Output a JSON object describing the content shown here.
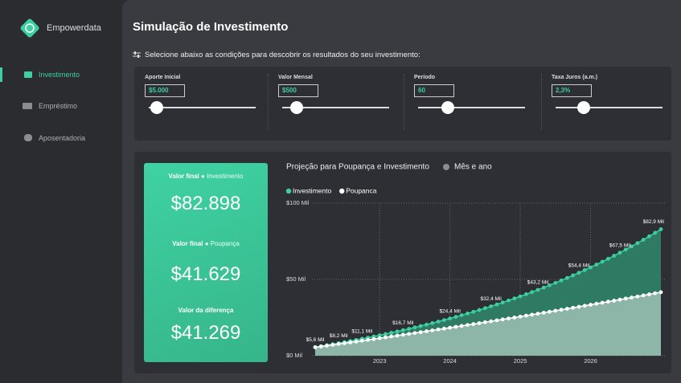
{
  "sidebar": {
    "brand": "Empowerdata",
    "nav": [
      "Investimento",
      "Empréstimo",
      "Aposentadoria"
    ]
  },
  "header": {
    "title": "Simulação de Investimento",
    "subtitle": "Selecione abaixo as condições para descobrir os resultados do seu investimento:"
  },
  "controls": [
    {
      "label": "Aporte Inicial",
      "value": "$5.000"
    },
    {
      "label": "Valor Mensal",
      "value": "$500"
    },
    {
      "label": "Período",
      "value": "60"
    },
    {
      "label": "Taxa Juros (a.m.)",
      "value": "2,3%"
    }
  ],
  "kpis": [
    {
      "label": "Valor final",
      "legend": "Investimento",
      "value": "$82.898"
    },
    {
      "label": "Valor final",
      "legend": "Poupança",
      "value": "$41.629"
    },
    {
      "label": "Valor da diferença",
      "value": "$41.269"
    }
  ],
  "chart_data": {
    "type": "area",
    "title": "Projeção para Poupança e Investimento",
    "subtitle": "Mês e ano",
    "categories": [
      null,
      null,
      null,
      null,
      null,
      null,
      null,
      null,
      null,
      null,
      null,
      "2023",
      null,
      null,
      null,
      null,
      null,
      null,
      null,
      null,
      null,
      null,
      null,
      "2024",
      null,
      null,
      null,
      null,
      null,
      null,
      null,
      null,
      null,
      null,
      null,
      "2025",
      null,
      null,
      null,
      null,
      null,
      null,
      null,
      null,
      null,
      null,
      null,
      "2026",
      null,
      null,
      null,
      null,
      null,
      null,
      null,
      null,
      null,
      null,
      null,
      null
    ],
    "ylim": [
      0,
      100000
    ],
    "yticks": [
      {
        "value": 0,
        "label": "$0 Mil"
      },
      {
        "value": 50000,
        "label": "$50 Mil"
      },
      {
        "value": 100000,
        "label": "$100 Mil"
      }
    ],
    "grid": true,
    "series": [
      {
        "name": "Investimento",
        "color": "#3dcf9f",
        "fill": "#2e7a62",
        "values": [
          5615,
          6244,
          6888,
          7546,
          8220,
          8909,
          9614,
          10335,
          11073,
          11828,
          12600,
          13390,
          14198,
          15025,
          15871,
          16736,
          17621,
          18526,
          19452,
          20399,
          21368,
          22359,
          23373,
          24411,
          25472,
          26558,
          27669,
          28805,
          29968,
          31157,
          32374,
          33619,
          34892,
          36195,
          37527,
          38890,
          40284,
          41711,
          43170,
          44663,
          46190,
          47752,
          49350,
          50985,
          52658,
          54369,
          56120,
          57911,
          59743,
          61617,
          63534,
          65495,
          67501,
          69554,
          71654,
          73802,
          75999,
          78247,
          80547,
          82898
        ],
        "value_labels": [
          "$5,6 Mil",
          null,
          null,
          null,
          "$8,2 Mil",
          null,
          null,
          null,
          "$11,1 Mil",
          null,
          null,
          null,
          null,
          null,
          null,
          "$16,7 Mil",
          null,
          null,
          null,
          null,
          null,
          null,
          null,
          "$24,4 Mil",
          null,
          null,
          null,
          null,
          null,
          null,
          "$32,4 Mil",
          null,
          null,
          null,
          null,
          null,
          null,
          null,
          "$43,2 Mil",
          null,
          null,
          null,
          null,
          null,
          null,
          "$54,4 Mil",
          null,
          null,
          null,
          null,
          null,
          null,
          "$67,5 Mil",
          null,
          null,
          null,
          null,
          null,
          null,
          "$82,9 Mil"
        ]
      },
      {
        "name": "Poupanca",
        "color": "#ffffff",
        "fill": "#8db5a8",
        "values": [
          5525,
          6053,
          6583,
          7116,
          7652,
          8190,
          8731,
          9275,
          9821,
          10370,
          10922,
          11477,
          12034,
          12594,
          13157,
          13723,
          14292,
          14863,
          15437,
          16014,
          16594,
          17177,
          17763,
          18352,
          18944,
          19539,
          20137,
          20738,
          21342,
          21949,
          22559,
          23172,
          23788,
          24407,
          25029,
          25654,
          26282,
          26913,
          27548,
          28186,
          28827,
          29471,
          30118,
          30769,
          31423,
          32080,
          32740,
          33404,
          34071,
          34741,
          35415,
          36092,
          36773,
          37457,
          38144,
          38835,
          39529,
          40227,
          40928,
          41629
        ]
      }
    ]
  }
}
